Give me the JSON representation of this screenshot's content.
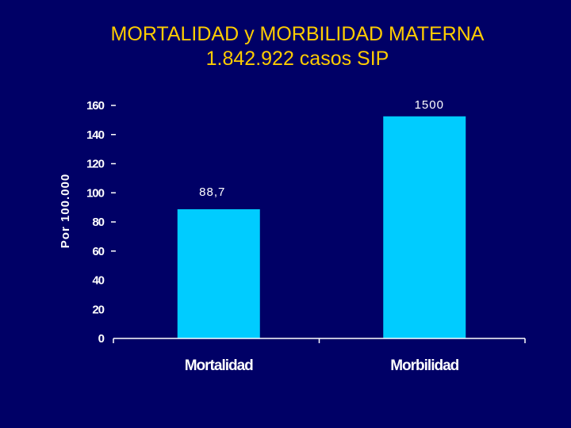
{
  "title": {
    "line1": "MORTALIDAD y MORBILIDAD  MATERNA",
    "line2": "1.842.922 casos SIP"
  },
  "colors": {
    "background": "#000066",
    "title": "#FFCC00",
    "bar": "#00CCFF",
    "text": "#FFFFFF"
  },
  "chart_data": {
    "type": "bar",
    "title": "MORTALIDAD y MORBILIDAD  MATERNA 1.842.922 casos SIP",
    "xlabel": "",
    "ylabel": "Por 100.000",
    "categories": [
      "Mortalidad",
      "Morbilidad"
    ],
    "values": [
      88.7,
      1500
    ],
    "data_labels": [
      "88,7",
      "1500"
    ],
    "ylim": [
      0,
      160
    ],
    "yticks": [
      0,
      20,
      40,
      60,
      80,
      100,
      120,
      140,
      160
    ],
    "ytick_labels": [
      "0",
      "20",
      "40",
      "60",
      "80",
      "100",
      "120",
      "140",
      "160"
    ],
    "axis_break": "bar for 1500 exceeds axis max and is drawn clipped near top",
    "grid": false,
    "legend": "none"
  }
}
